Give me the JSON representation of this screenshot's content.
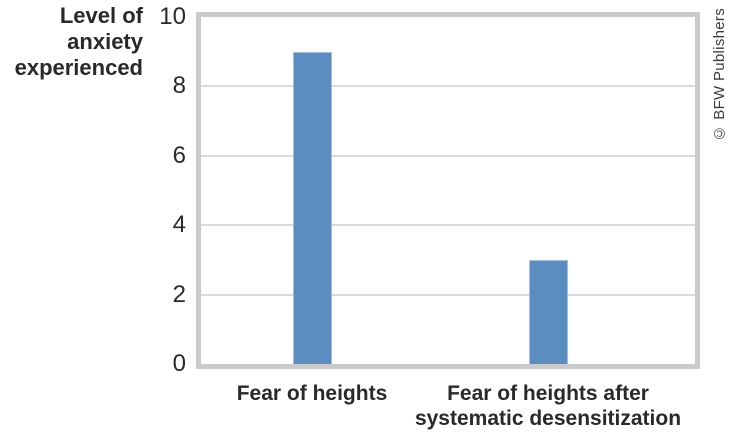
{
  "chart_data": {
    "type": "bar",
    "categories": [
      "Fear of heights",
      "Fear of heights after systematic desensitization"
    ],
    "categories_display": [
      "Fear of heights",
      "Fear of heights after\nsystematic desensitization"
    ],
    "values": [
      9,
      3
    ],
    "title": "",
    "xlabel": "",
    "ylabel": "Level of anxiety experienced",
    "ylabel_display": "Level of\nanxiety\nexperienced",
    "ylim": [
      0,
      10
    ],
    "yticks": [
      0,
      2,
      4,
      6,
      8,
      10
    ],
    "grid": true,
    "legend": false,
    "bar_color": "#5b8dc1"
  },
  "credit": "© BFW Publishers",
  "colors": {
    "bar": "#5b8dc1",
    "bar_edge": "#a3bedc",
    "plot_border": "#c9cacb",
    "gridline": "#d9dadb",
    "text": "#2b2828",
    "credit_text": "#3d3d3d",
    "background": "#ffffff"
  }
}
